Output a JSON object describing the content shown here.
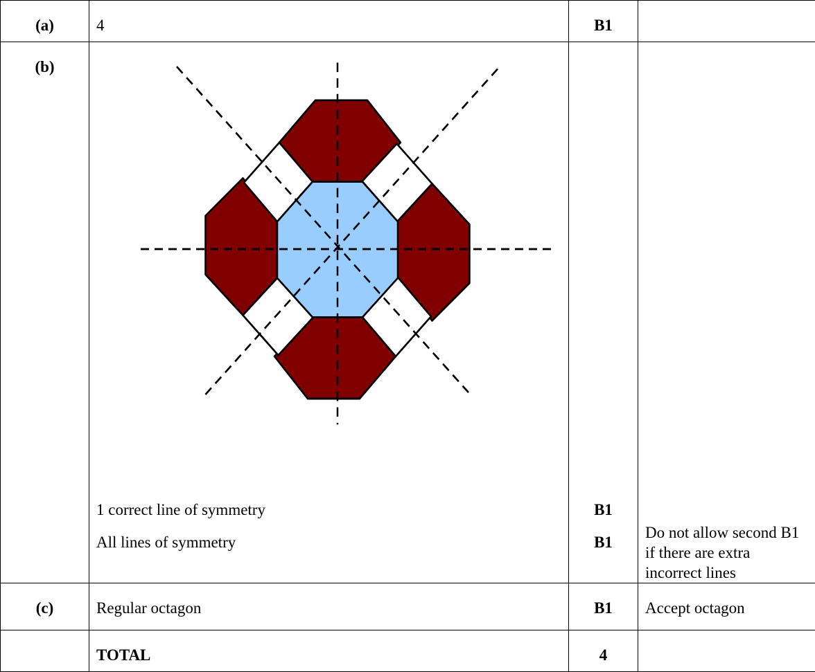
{
  "table": {
    "rows": [
      {
        "part": "(a)",
        "answer": [
          "4"
        ],
        "mark": [
          "B1"
        ],
        "notes": null
      },
      {
        "part": "(b)",
        "answer": [
          "1 correct line of symmetry",
          "All lines of symmetry"
        ],
        "mark": [
          "B1",
          "B1"
        ],
        "notes": "Do not allow second B1 if there are extra incorrect lines"
      },
      {
        "part": "(c)",
        "answer": [
          "Regular octagon"
        ],
        "mark": [
          "B1"
        ],
        "notes": "Accept octagon"
      },
      {
        "part": null,
        "answer": [
          "TOTAL"
        ],
        "mark": [
          "4"
        ],
        "notes": null
      }
    ]
  }
}
